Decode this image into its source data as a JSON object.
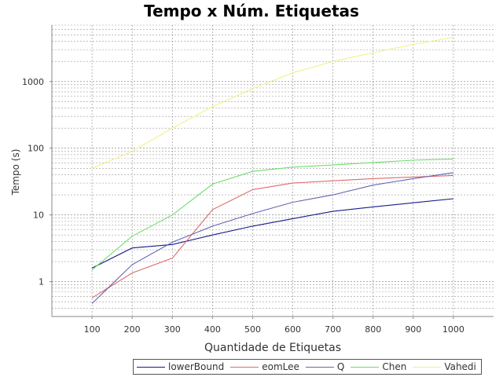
{
  "chart_data": {
    "type": "line",
    "title": "Tempo x Núm. Etiquetas",
    "xlabel": "Quantidade de Etiquetas",
    "ylabel": "Tempo (s)",
    "x": [
      100,
      200,
      300,
      400,
      500,
      600,
      700,
      800,
      900,
      1000
    ],
    "xlim": [
      0,
      1100
    ],
    "ylim": [
      0.3,
      7000
    ],
    "yscale": "log",
    "x_ticks": [
      "100",
      "200",
      "300",
      "400",
      "500",
      "600",
      "700",
      "800",
      "900",
      "1000"
    ],
    "y_ticks": [
      {
        "value": 1,
        "label": "1"
      },
      {
        "value": 10,
        "label": "10"
      },
      {
        "value": 100,
        "label": "100"
      },
      {
        "value": 1000,
        "label": "1000"
      }
    ],
    "grid": true,
    "legend_position": "bottom",
    "series": [
      {
        "name": "lowerBound",
        "color": "#1a1a8c",
        "values": [
          1.6,
          3.2,
          3.6,
          5.0,
          6.8,
          8.8,
          11.3,
          13.2,
          15.2,
          17.5
        ]
      },
      {
        "name": "eomLee",
        "color": "#e06a6a",
        "values": [
          0.57,
          1.35,
          2.25,
          12.0,
          24.0,
          30.0,
          32.5,
          35.0,
          37.0,
          39.0
        ]
      },
      {
        "name": "Q",
        "color": "#6464b4",
        "values": [
          0.47,
          1.8,
          3.9,
          6.8,
          10.5,
          15.5,
          20.0,
          28.0,
          35.0,
          43.0
        ]
      },
      {
        "name": "Chen",
        "color": "#6edc6e",
        "values": [
          1.5,
          4.8,
          10.0,
          29.0,
          45.0,
          52.0,
          56.0,
          61.0,
          66.0,
          69.0
        ]
      },
      {
        "name": "Vahedi",
        "color": "#f0f08c",
        "values": [
          50,
          90,
          200,
          420,
          780,
          1350,
          2000,
          2700,
          3600,
          4600
        ]
      }
    ]
  }
}
